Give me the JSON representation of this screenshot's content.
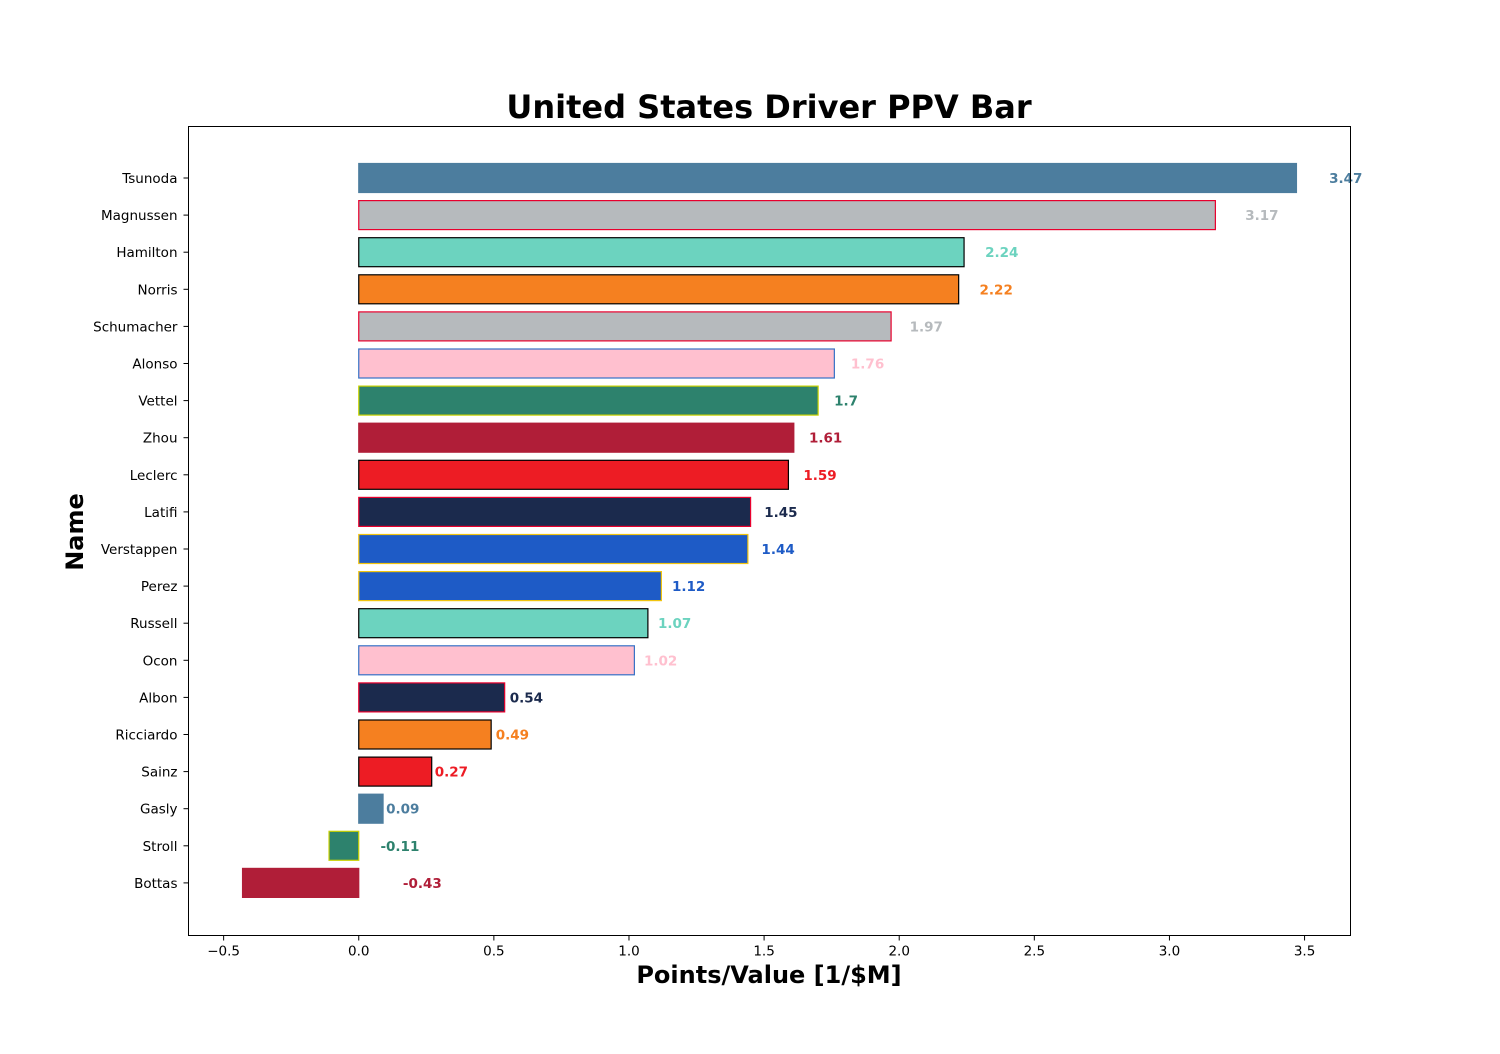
{
  "chart_data": {
    "type": "bar",
    "orientation": "horizontal",
    "title": "United States Driver PPV Bar",
    "xlabel": "Points/Value [1/$M]",
    "ylabel": "Name",
    "xlim": [
      -0.63,
      3.67
    ],
    "xticks": [
      -0.5,
      0.0,
      0.5,
      1.0,
      1.5,
      2.0,
      2.5,
      3.0,
      3.5
    ],
    "xtick_labels": [
      "−0.5",
      "0.0",
      "0.5",
      "1.0",
      "1.5",
      "2.0",
      "2.5",
      "3.0",
      "3.5"
    ],
    "grid": false,
    "legend": "none",
    "categories": [
      "Tsunoda",
      "Magnussen",
      "Hamilton",
      "Norris",
      "Schumacher",
      "Alonso",
      "Vettel",
      "Zhou",
      "Leclerc",
      "Latifi",
      "Verstappen",
      "Perez",
      "Russell",
      "Ocon",
      "Albon",
      "Ricciardo",
      "Sainz",
      "Gasly",
      "Stroll",
      "Bottas"
    ],
    "values": [
      3.47,
      3.17,
      2.24,
      2.22,
      1.97,
      1.76,
      1.7,
      1.61,
      1.59,
      1.45,
      1.44,
      1.12,
      1.07,
      1.02,
      0.54,
      0.49,
      0.27,
      0.09,
      -0.11,
      -0.43
    ],
    "value_labels": [
      "3.47",
      "3.17",
      "2.24",
      "2.22",
      "1.97",
      "1.76",
      "1.7",
      "1.61",
      "1.59",
      "1.45",
      "1.44",
      "1.12",
      "1.07",
      "1.02",
      "0.54",
      "0.49",
      "0.27",
      "0.09",
      "-0.11",
      "-0.43"
    ],
    "bar_colors": [
      "#4C7D9E",
      "#B6BABD",
      "#6CD3BF",
      "#F58020",
      "#B6BABD",
      "#FFC0CF",
      "#2D826D",
      "#B01E38",
      "#ED1C24",
      "#1B2A4D",
      "#1E5BC6",
      "#1E5BC6",
      "#6CD3BF",
      "#FFC0CF",
      "#1B2A4D",
      "#F58020",
      "#ED1C24",
      "#4C7D9E",
      "#2D826D",
      "#B01E38"
    ],
    "edge_colors": [
      "#4C7D9E",
      "#E8002D",
      "#000000",
      "#000000",
      "#E8002D",
      "#3671C6",
      "#C9D100",
      "#B01E38",
      "#000000",
      "#E8002D",
      "#F1C40F",
      "#F1C40F",
      "#000000",
      "#3671C6",
      "#E8002D",
      "#000000",
      "#000000",
      "#4C7D9E",
      "#C9D100",
      "#B01E38"
    ]
  }
}
